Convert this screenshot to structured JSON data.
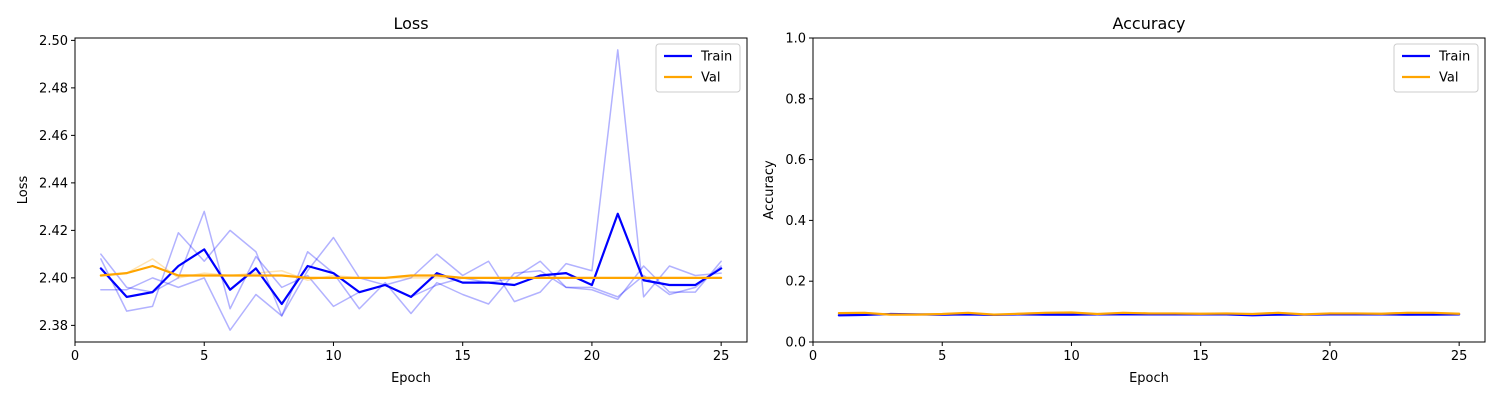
{
  "chart_data": [
    {
      "type": "line",
      "title": "Loss",
      "xlabel": "Epoch",
      "ylabel": "Loss",
      "xlim": [
        0,
        26
      ],
      "ylim": [
        2.373,
        2.501
      ],
      "xticks": [
        0,
        5,
        10,
        15,
        20,
        25
      ],
      "yticks": [
        2.38,
        2.4,
        2.42,
        2.44,
        2.46,
        2.48,
        2.5
      ],
      "ytick_decimals": 2,
      "legend": "top-right",
      "grid": false,
      "x": [
        1,
        2,
        3,
        4,
        5,
        6,
        7,
        8,
        9,
        10,
        11,
        12,
        13,
        14,
        15,
        16,
        17,
        18,
        19,
        20,
        21,
        22,
        23,
        24,
        25
      ],
      "series": [
        {
          "name": "Train",
          "color": "#0000ff",
          "width": 2.2,
          "opacity": 1,
          "values": [
            2.404,
            2.392,
            2.394,
            2.405,
            2.412,
            2.395,
            2.404,
            2.389,
            2.405,
            2.402,
            2.394,
            2.397,
            2.392,
            2.402,
            2.398,
            2.398,
            2.397,
            2.401,
            2.402,
            2.397,
            2.427,
            2.399,
            2.397,
            2.397,
            2.404
          ]
        },
        {
          "name": "Val",
          "color": "#ffa500",
          "width": 2.2,
          "opacity": 1,
          "values": [
            2.401,
            2.402,
            2.405,
            2.401,
            2.401,
            2.401,
            2.401,
            2.401,
            2.4,
            2.4,
            2.4,
            2.4,
            2.401,
            2.401,
            2.4,
            2.4,
            2.4,
            2.4,
            2.4,
            2.4,
            2.4,
            2.4,
            2.4,
            2.4,
            2.4
          ]
        }
      ],
      "background_series": [
        {
          "color": "#0000ff",
          "opacity": 0.3,
          "values": [
            2.408,
            2.386,
            2.388,
            2.419,
            2.407,
            2.42,
            2.411,
            2.384,
            2.411,
            2.402,
            2.387,
            2.398,
            2.385,
            2.398,
            2.393,
            2.389,
            2.402,
            2.403,
            2.396,
            2.395,
            2.391,
            2.405,
            2.394,
            2.394,
            2.407
          ]
        },
        {
          "color": "#0000ff",
          "opacity": 0.3,
          "values": [
            2.395,
            2.395,
            2.4,
            2.396,
            2.4,
            2.378,
            2.393,
            2.384,
            2.403,
            2.417,
            2.4,
            2.397,
            2.4,
            2.41,
            2.401,
            2.407,
            2.39,
            2.394,
            2.406,
            2.403,
            2.496,
            2.392,
            2.405,
            2.401,
            2.402
          ]
        },
        {
          "color": "#0000ff",
          "opacity": 0.3,
          "values": [
            2.41,
            2.396,
            2.394,
            2.4,
            2.428,
            2.387,
            2.409,
            2.396,
            2.401,
            2.388,
            2.394,
            2.397,
            2.392,
            2.397,
            2.4,
            2.398,
            2.4,
            2.407,
            2.396,
            2.396,
            2.392,
            2.401,
            2.393,
            2.396,
            2.405
          ]
        },
        {
          "color": "#ffa500",
          "opacity": 0.3,
          "values": [
            2.401,
            2.402,
            2.408,
            2.4,
            2.402,
            2.401,
            2.402,
            2.403,
            2.399,
            2.401,
            2.4,
            2.4,
            2.4,
            2.4,
            2.4,
            2.4,
            2.4,
            2.4,
            2.4,
            2.4,
            2.4,
            2.4,
            2.4,
            2.4,
            2.4
          ]
        }
      ]
    },
    {
      "type": "line",
      "title": "Accuracy",
      "xlabel": "Epoch",
      "ylabel": "Accuracy",
      "xlim": [
        0,
        26
      ],
      "ylim": [
        0,
        1.0
      ],
      "xticks": [
        0,
        5,
        10,
        15,
        20,
        25
      ],
      "yticks": [
        0.0,
        0.2,
        0.4,
        0.6,
        0.8,
        1.0
      ],
      "ytick_decimals": 1,
      "legend": "top-right",
      "grid": false,
      "x": [
        1,
        2,
        3,
        4,
        5,
        6,
        7,
        8,
        9,
        10,
        11,
        12,
        13,
        14,
        15,
        16,
        17,
        18,
        19,
        20,
        21,
        22,
        23,
        24,
        25
      ],
      "series": [
        {
          "name": "Train",
          "color": "#0000ff",
          "width": 2.2,
          "opacity": 1,
          "values": [
            0.088,
            0.089,
            0.092,
            0.091,
            0.09,
            0.091,
            0.089,
            0.091,
            0.09,
            0.09,
            0.091,
            0.091,
            0.091,
            0.091,
            0.091,
            0.091,
            0.088,
            0.09,
            0.09,
            0.091,
            0.091,
            0.091,
            0.09,
            0.09,
            0.091
          ]
        },
        {
          "name": "Val",
          "color": "#ffa500",
          "width": 2.2,
          "opacity": 1,
          "values": [
            0.095,
            0.096,
            0.09,
            0.09,
            0.092,
            0.096,
            0.09,
            0.093,
            0.096,
            0.097,
            0.092,
            0.096,
            0.094,
            0.094,
            0.093,
            0.094,
            0.092,
            0.096,
            0.091,
            0.094,
            0.094,
            0.093,
            0.096,
            0.096,
            0.093
          ]
        }
      ],
      "background_series": [
        {
          "color": "#0000ff",
          "opacity": 0.3,
          "values": [
            0.086,
            0.088,
            0.093,
            0.09,
            0.088,
            0.092,
            0.088,
            0.092,
            0.089,
            0.088,
            0.092,
            0.09,
            0.09,
            0.092,
            0.09,
            0.092,
            0.087,
            0.089,
            0.091,
            0.09,
            0.092,
            0.09,
            0.089,
            0.091,
            0.09
          ]
        },
        {
          "color": "#ffa500",
          "opacity": 0.3,
          "values": [
            0.096,
            0.097,
            0.089,
            0.091,
            0.093,
            0.095,
            0.089,
            0.094,
            0.097,
            0.098,
            0.091,
            0.097,
            0.095,
            0.093,
            0.094,
            0.093,
            0.093,
            0.097,
            0.09,
            0.095,
            0.093,
            0.094,
            0.097,
            0.095,
            0.094
          ]
        }
      ]
    }
  ]
}
